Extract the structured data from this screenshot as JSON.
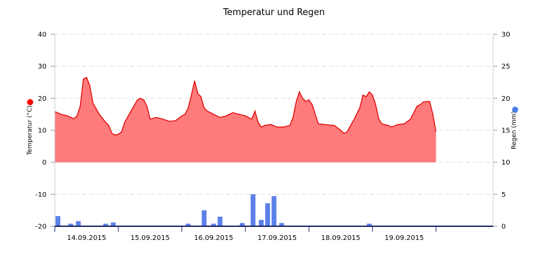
{
  "chart_data": {
    "type": "area",
    "title": "Temperatur und Regen",
    "y_left": {
      "label": "Temperatur (°C)",
      "range": [
        -20,
        40
      ],
      "ticks": [
        40,
        30,
        20,
        10,
        0,
        -10,
        -20
      ],
      "marker_color": "#ff0000"
    },
    "y_right": {
      "label": "Regen (mm)",
      "range": [
        0,
        30
      ],
      "ticks": [
        30,
        25,
        20,
        15,
        10,
        5,
        0
      ],
      "marker_color": "#4a80e8"
    },
    "x_range_days": [
      13.6,
      20.5
    ],
    "x_ticks": [
      "14.09.2015",
      "15.09.2015",
      "16.09.2015",
      "17.09.2015",
      "18.09.2015",
      "19.09.2015"
    ],
    "grid": true,
    "series": [
      {
        "kind": "area",
        "color": "#ff7b7b",
        "line_color": "#e00000",
        "baseline": 0,
        "points": [
          [
            13.6,
            15.8
          ],
          [
            13.7,
            15.0
          ],
          [
            13.8,
            14.5
          ],
          [
            13.9,
            13.6
          ],
          [
            13.95,
            14.5
          ],
          [
            14.0,
            17.5
          ],
          [
            14.05,
            26.0
          ],
          [
            14.1,
            26.5
          ],
          [
            14.15,
            24.0
          ],
          [
            14.2,
            18.5
          ],
          [
            14.3,
            15.0
          ],
          [
            14.4,
            12.5
          ],
          [
            14.45,
            11.5
          ],
          [
            14.5,
            9.0
          ],
          [
            14.55,
            8.5
          ],
          [
            14.6,
            8.8
          ],
          [
            14.65,
            9.5
          ],
          [
            14.7,
            12.5
          ],
          [
            14.8,
            16.0
          ],
          [
            14.9,
            19.5
          ],
          [
            14.95,
            20.0
          ],
          [
            15.0,
            19.5
          ],
          [
            15.05,
            17.5
          ],
          [
            15.1,
            13.5
          ],
          [
            15.2,
            14.0
          ],
          [
            15.3,
            13.5
          ],
          [
            15.4,
            12.8
          ],
          [
            15.5,
            13.0
          ],
          [
            15.6,
            14.5
          ],
          [
            15.65,
            15.0
          ],
          [
            15.7,
            17.0
          ],
          [
            15.75,
            21.0
          ],
          [
            15.8,
            25.5
          ],
          [
            15.85,
            21.5
          ],
          [
            15.9,
            20.5
          ],
          [
            15.95,
            17.0
          ],
          [
            16.0,
            16.0
          ],
          [
            16.1,
            15.0
          ],
          [
            16.2,
            14.0
          ],
          [
            16.3,
            14.5
          ],
          [
            16.4,
            15.5
          ],
          [
            16.5,
            15.0
          ],
          [
            16.6,
            14.5
          ],
          [
            16.7,
            13.5
          ],
          [
            16.75,
            16.0
          ],
          [
            16.8,
            12.5
          ],
          [
            16.85,
            11.0
          ],
          [
            16.9,
            11.5
          ],
          [
            17.0,
            11.8
          ],
          [
            17.1,
            11.0
          ],
          [
            17.2,
            11.0
          ],
          [
            17.3,
            11.5
          ],
          [
            17.35,
            14.0
          ],
          [
            17.4,
            19.0
          ],
          [
            17.45,
            22.0
          ],
          [
            17.5,
            20.0
          ],
          [
            17.55,
            19.0
          ],
          [
            17.6,
            19.5
          ],
          [
            17.65,
            18.0
          ],
          [
            17.7,
            15.0
          ],
          [
            17.75,
            12.0
          ],
          [
            17.85,
            11.8
          ],
          [
            18.0,
            11.5
          ],
          [
            18.1,
            10.0
          ],
          [
            18.15,
            9.0
          ],
          [
            18.2,
            9.5
          ],
          [
            18.3,
            13.0
          ],
          [
            18.4,
            17.0
          ],
          [
            18.45,
            21.0
          ],
          [
            18.5,
            20.5
          ],
          [
            18.55,
            22.0
          ],
          [
            18.6,
            21.0
          ],
          [
            18.65,
            18.0
          ],
          [
            18.7,
            13.5
          ],
          [
            18.75,
            12.0
          ],
          [
            18.85,
            11.5
          ],
          [
            18.9,
            11.0
          ],
          [
            19.0,
            11.8
          ],
          [
            19.1,
            12.0
          ],
          [
            19.2,
            13.5
          ],
          [
            19.3,
            17.5
          ],
          [
            19.35,
            18.0
          ],
          [
            19.4,
            18.8
          ],
          [
            19.45,
            19.0
          ],
          [
            19.5,
            19.0
          ],
          [
            19.55,
            15.0
          ],
          [
            19.6,
            9.5
          ]
        ]
      },
      {
        "kind": "bar",
        "color": "#5b80e9",
        "axis": "right",
        "points": [
          [
            13.65,
            1.6
          ],
          [
            13.85,
            0.4
          ],
          [
            13.97,
            0.8
          ],
          [
            14.4,
            0.4
          ],
          [
            14.52,
            0.6
          ],
          [
            15.7,
            0.4
          ],
          [
            15.95,
            2.5
          ],
          [
            16.1,
            0.4
          ],
          [
            16.2,
            1.5
          ],
          [
            16.55,
            0.5
          ],
          [
            16.72,
            5.0
          ],
          [
            16.85,
            1.0
          ],
          [
            16.95,
            3.6
          ],
          [
            17.05,
            4.7
          ],
          [
            17.17,
            0.5
          ],
          [
            18.55,
            0.4
          ]
        ]
      }
    ]
  }
}
